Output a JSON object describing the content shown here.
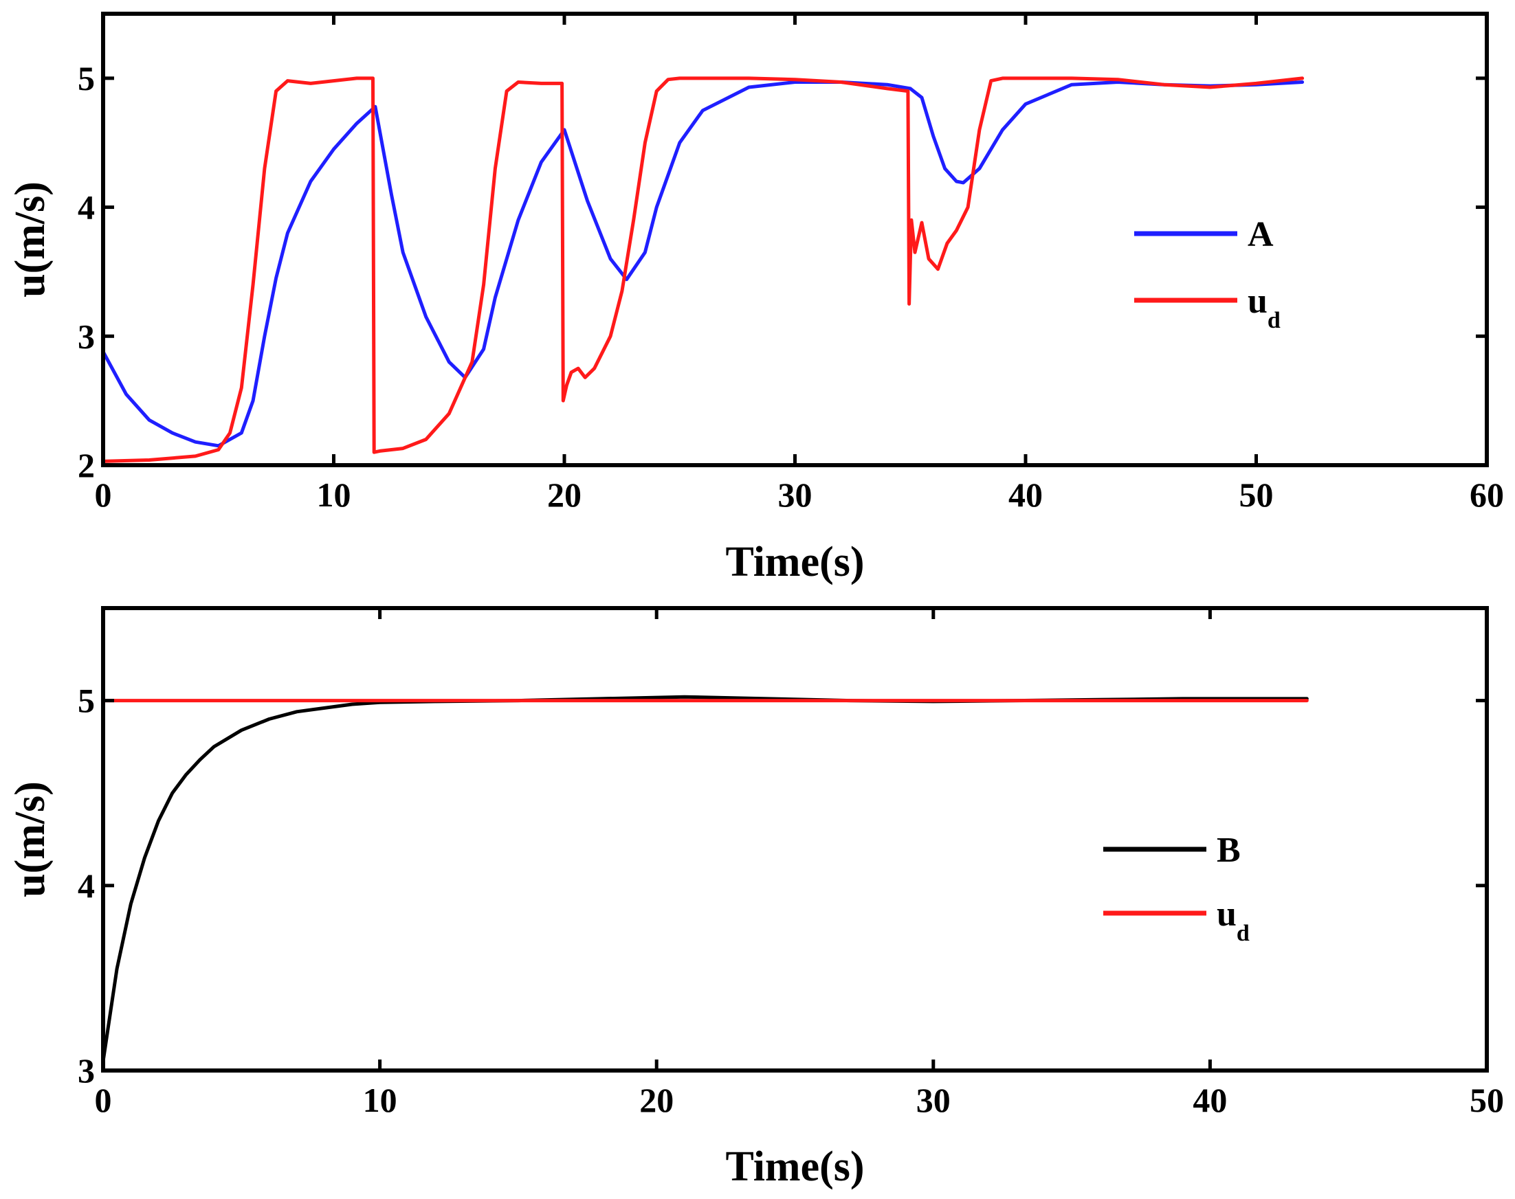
{
  "chart_data": [
    {
      "type": "line",
      "title": "",
      "xlabel": "Time(s)",
      "ylabel": "u(m/s)",
      "xlim": [
        0,
        60
      ],
      "ylim": [
        2,
        5.5
      ],
      "xticks": [
        0,
        10,
        20,
        30,
        40,
        50,
        60
      ],
      "xtick_labels": [
        "0",
        "10",
        "20",
        "30",
        "40",
        "50",
        "60"
      ],
      "yticks": [
        2,
        3,
        4,
        5
      ],
      "ytick_labels": [
        "2",
        "3",
        "4",
        "5"
      ],
      "grid": false,
      "legend_position": "right",
      "series": [
        {
          "name": "A",
          "legend_label": "A",
          "color": "#1f1fff",
          "x": [
            0,
            1,
            2,
            3,
            4,
            5,
            6,
            6.5,
            7,
            7.5,
            8,
            9,
            10,
            11,
            11.8,
            12.5,
            13,
            14,
            15,
            15.7,
            16.5,
            17,
            18,
            19,
            20,
            21,
            22,
            22.7,
            23.5,
            24,
            25,
            26,
            28,
            30,
            32,
            34,
            35,
            35.5,
            36,
            36.5,
            37,
            37.3,
            38,
            39,
            40,
            42,
            44,
            46,
            48,
            50,
            52
          ],
          "values": [
            2.88,
            2.55,
            2.35,
            2.25,
            2.18,
            2.15,
            2.25,
            2.5,
            3.0,
            3.45,
            3.8,
            4.2,
            4.45,
            4.65,
            4.78,
            4.1,
            3.65,
            3.15,
            2.8,
            2.68,
            2.9,
            3.3,
            3.9,
            4.35,
            4.6,
            4.05,
            3.6,
            3.44,
            3.65,
            4.0,
            4.5,
            4.75,
            4.93,
            4.97,
            4.97,
            4.95,
            4.92,
            4.85,
            4.55,
            4.3,
            4.2,
            4.19,
            4.3,
            4.6,
            4.8,
            4.95,
            4.97,
            4.95,
            4.94,
            4.95,
            4.97
          ]
        },
        {
          "name": "u_d",
          "legend_label": "u",
          "legend_subscript": "d",
          "color": "#ff1a1a",
          "x": [
            0,
            2,
            4,
            5,
            5.5,
            6,
            6.5,
            7,
            7.5,
            8,
            9,
            10,
            11,
            11.7,
            11.75,
            12,
            13,
            14,
            15,
            16,
            16.5,
            17,
            17.5,
            18,
            19,
            19.9,
            19.95,
            20.1,
            20.3,
            20.6,
            20.9,
            21.3,
            22,
            22.5,
            23,
            23.5,
            24,
            24.5,
            25,
            28,
            30,
            32,
            34,
            34.9,
            34.95,
            35.05,
            35.2,
            35.5,
            35.8,
            36.2,
            36.6,
            37,
            37.5,
            38,
            38.5,
            39,
            40,
            42,
            44,
            46,
            48,
            50,
            52
          ],
          "values": [
            2.03,
            2.04,
            2.07,
            2.12,
            2.25,
            2.6,
            3.4,
            4.3,
            4.9,
            4.98,
            4.96,
            4.98,
            5.0,
            5.0,
            2.1,
            2.11,
            2.13,
            2.2,
            2.4,
            2.8,
            3.4,
            4.3,
            4.9,
            4.97,
            4.96,
            4.96,
            2.5,
            2.62,
            2.72,
            2.75,
            2.68,
            2.75,
            3.0,
            3.35,
            3.9,
            4.5,
            4.9,
            4.99,
            5.0,
            5.0,
            4.99,
            4.97,
            4.92,
            4.9,
            3.25,
            3.9,
            3.65,
            3.88,
            3.6,
            3.52,
            3.72,
            3.82,
            4.0,
            4.6,
            4.98,
            5.0,
            5.0,
            5.0,
            4.99,
            4.95,
            4.93,
            4.96,
            5.0
          ]
        }
      ]
    },
    {
      "type": "line",
      "title": "",
      "xlabel": "Time(s)",
      "ylabel": "u(m/s)",
      "xlim": [
        0,
        50
      ],
      "ylim": [
        3,
        5.5
      ],
      "xticks": [
        0,
        10,
        20,
        30,
        40,
        50
      ],
      "xtick_labels": [
        "0",
        "10",
        "20",
        "30",
        "40",
        "50"
      ],
      "yticks": [
        3,
        4,
        5
      ],
      "ytick_labels": [
        "3",
        "4",
        "5"
      ],
      "grid": false,
      "legend_position": "right",
      "series": [
        {
          "name": "B",
          "legend_label": "B",
          "color": "#000000",
          "x": [
            0,
            0.5,
            1,
            1.5,
            2,
            2.5,
            3,
            3.5,
            4,
            5,
            6,
            7,
            8,
            9,
            10,
            12,
            15,
            18,
            21,
            24,
            27,
            30,
            33,
            36,
            39,
            42,
            43.5
          ],
          "values": [
            3.05,
            3.55,
            3.9,
            4.15,
            4.35,
            4.5,
            4.6,
            4.68,
            4.75,
            4.84,
            4.9,
            4.94,
            4.96,
            4.98,
            4.99,
            4.995,
            5.0,
            5.01,
            5.02,
            5.01,
            5.0,
            4.995,
            5.0,
            5.005,
            5.01,
            5.01,
            5.01
          ]
        },
        {
          "name": "u_d",
          "legend_label": "u",
          "legend_subscript": "d",
          "color": "#ff1a1a",
          "x": [
            0,
            10,
            20,
            30,
            40,
            43.5
          ],
          "values": [
            5.0,
            5.0,
            5.0,
            5.0,
            5.0,
            5.0
          ]
        }
      ]
    }
  ]
}
